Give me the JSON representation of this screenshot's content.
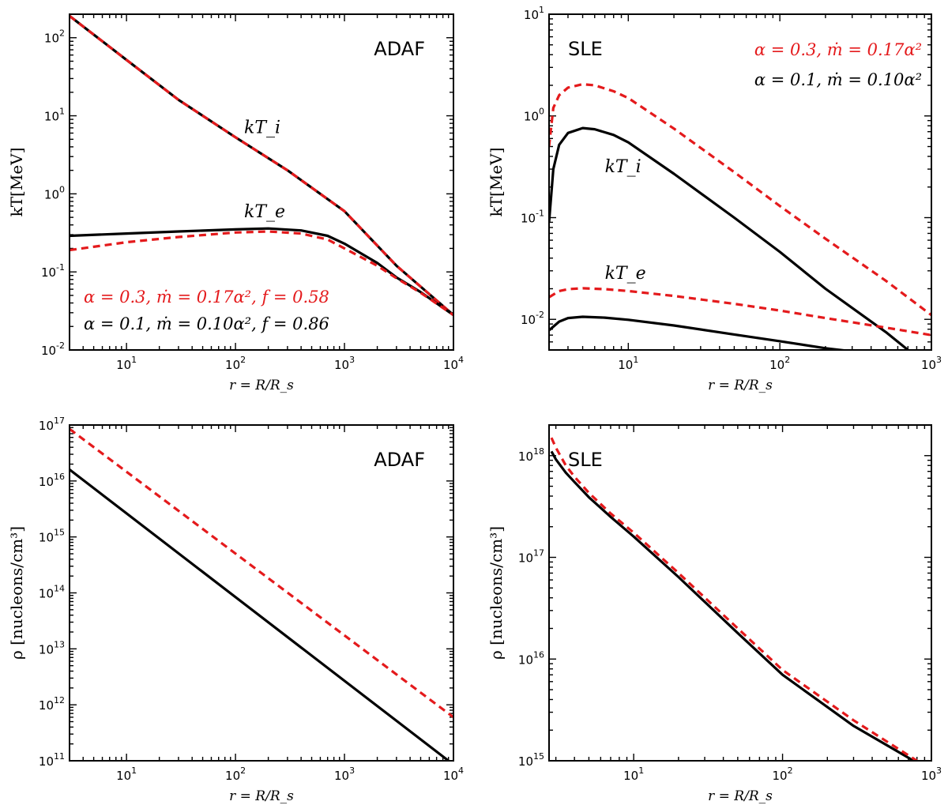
{
  "colors": {
    "red": "#e41a1c",
    "black": "#000000"
  },
  "chart_data": [
    {
      "id": "adaf-temp",
      "type": "line",
      "title": "ADAF",
      "ylabel": "kT[MeV]",
      "xlabel": "r = R/R_s",
      "xscale": "log",
      "yscale": "log",
      "xlim": [
        3,
        10000
      ],
      "ylim": [
        0.01,
        200
      ],
      "xticks": [
        10,
        100,
        1000,
        10000
      ],
      "yticks": [
        0.01,
        0.1,
        1,
        10,
        100
      ],
      "legend": [
        {
          "text": "α = 0.3, ṁ = 0.17α², f = 0.58",
          "color": "#e41a1c"
        },
        {
          "text": "α = 0.1, ṁ = 0.10α², f = 0.86",
          "color": "#000000"
        }
      ],
      "annotations": [
        {
          "text": "kT_i",
          "x": 120,
          "y": 6
        },
        {
          "text": "kT_e",
          "x": 120,
          "y": 0.5
        }
      ],
      "series": [
        {
          "name": "kT_i α=0.1",
          "color": "#000000",
          "style": "solid",
          "x": [
            3,
            10,
            30,
            100,
            300,
            1000,
            3000,
            10000
          ],
          "y": [
            190,
            52,
            16,
            5.3,
            2.0,
            0.6,
            0.12,
            0.028
          ]
        },
        {
          "name": "kT_i α=0.3",
          "color": "#e41a1c",
          "style": "dashed",
          "x": [
            3,
            10,
            30,
            100,
            300,
            1000,
            3000,
            10000
          ],
          "y": [
            190,
            52,
            16,
            5.3,
            2.0,
            0.6,
            0.12,
            0.028
          ]
        },
        {
          "name": "kT_e α=0.1",
          "color": "#000000",
          "style": "solid",
          "x": [
            3,
            10,
            30,
            100,
            200,
            400,
            700,
            1000,
            2000,
            3000,
            5000,
            10000
          ],
          "y": [
            0.29,
            0.31,
            0.33,
            0.35,
            0.36,
            0.34,
            0.29,
            0.23,
            0.13,
            0.085,
            0.055,
            0.028
          ]
        },
        {
          "name": "kT_e α=0.3",
          "color": "#e41a1c",
          "style": "dashed",
          "x": [
            3,
            10,
            30,
            100,
            200,
            400,
            700,
            1000,
            2000,
            3000,
            5000,
            10000
          ],
          "y": [
            0.19,
            0.24,
            0.28,
            0.32,
            0.33,
            0.31,
            0.26,
            0.2,
            0.12,
            0.083,
            0.054,
            0.028
          ]
        }
      ]
    },
    {
      "id": "sle-temp",
      "type": "line",
      "title": "SLE",
      "ylabel": "kT[MeV]",
      "xlabel": "r = R/R_s",
      "xscale": "log",
      "yscale": "log",
      "xlim": [
        3,
        1000
      ],
      "ylim": [
        0.005,
        10
      ],
      "xticks": [
        10,
        100,
        1000
      ],
      "yticks": [
        0.01,
        0.1,
        1,
        10
      ],
      "legend": [
        {
          "text": "α = 0.3, ṁ = 0.17α²",
          "color": "#e41a1c"
        },
        {
          "text": "α = 0.1, ṁ = 0.10α²",
          "color": "#000000"
        }
      ],
      "annotations": [
        {
          "text": "kT_i",
          "x": 7,
          "y": 0.28
        },
        {
          "text": "kT_e",
          "x": 7,
          "y": 0.025
        }
      ],
      "series": [
        {
          "name": "kT_i α=0.1",
          "color": "#000000",
          "style": "solid",
          "x": [
            3,
            3.2,
            3.5,
            4,
            5,
            6,
            8,
            10,
            20,
            50,
            100,
            200,
            500,
            700
          ],
          "y": [
            0.09,
            0.3,
            0.52,
            0.68,
            0.76,
            0.74,
            0.65,
            0.55,
            0.27,
            0.1,
            0.046,
            0.02,
            0.0075,
            0.005
          ]
        },
        {
          "name": "kT_i α=0.3",
          "color": "#e41a1c",
          "style": "dashed",
          "x": [
            3,
            3.2,
            3.5,
            4,
            5,
            6,
            8,
            10,
            20,
            50,
            100,
            200,
            500,
            1000
          ],
          "y": [
            0.5,
            1.2,
            1.6,
            1.9,
            2.05,
            2.0,
            1.75,
            1.5,
            0.75,
            0.28,
            0.13,
            0.062,
            0.024,
            0.011
          ]
        },
        {
          "name": "kT_e α=0.1",
          "color": "#000000",
          "style": "solid",
          "x": [
            3,
            3.5,
            4,
            5,
            7,
            10,
            20,
            50,
            100,
            200,
            280
          ],
          "y": [
            0.0078,
            0.0095,
            0.0103,
            0.0106,
            0.0104,
            0.0099,
            0.0087,
            0.0071,
            0.0061,
            0.0052,
            0.0049
          ]
        },
        {
          "name": "kT_e α=0.3",
          "color": "#e41a1c",
          "style": "dashed",
          "x": [
            3,
            3.5,
            4,
            5,
            7,
            10,
            20,
            50,
            100,
            200,
            500,
            1000
          ],
          "y": [
            0.0165,
            0.019,
            0.0198,
            0.0202,
            0.0198,
            0.019,
            0.017,
            0.0142,
            0.0122,
            0.0103,
            0.0083,
            0.007
          ]
        }
      ]
    },
    {
      "id": "adaf-density",
      "type": "line",
      "title": "ADAF",
      "ylabel": "ρ [nucleons/cm³]",
      "xlabel": "r = R/R_s",
      "xscale": "log",
      "yscale": "log",
      "xlim": [
        3,
        10000
      ],
      "ylim": [
        100000000000.0,
        1e+17
      ],
      "xticks": [
        10,
        100,
        1000,
        10000
      ],
      "yticks": [
        100000000000.0,
        1000000000000.0,
        10000000000000.0,
        100000000000000.0,
        1000000000000000.0,
        1e+16,
        1e+17
      ],
      "series": [
        {
          "name": "ρ α=0.1",
          "color": "#000000",
          "style": "solid",
          "x": [
            3,
            9000
          ],
          "y": [
            1.6e+16,
            100000000000.0
          ]
        },
        {
          "name": "ρ α=0.3",
          "color": "#e41a1c",
          "style": "dashed",
          "x": [
            3,
            10000
          ],
          "y": [
            8.5e+16,
            600000000000.0
          ]
        }
      ]
    },
    {
      "id": "sle-density",
      "type": "line",
      "title": "SLE",
      "ylabel": "ρ [nucleons/cm³]",
      "xlabel": "r = R/R_s",
      "xscale": "log",
      "yscale": "log",
      "xlim": [
        2.7,
        1000
      ],
      "ylim": [
        1000000000000000.0,
        2e+18
      ],
      "xticks": [
        10,
        100,
        1000
      ],
      "yticks": [
        1000000000000000.0,
        1e+16,
        1e+17,
        1e+18
      ],
      "series": [
        {
          "name": "ρ α=0.1",
          "color": "#000000",
          "style": "solid",
          "x": [
            2.8,
            3,
            3.5,
            4,
            5,
            7,
            10,
            20,
            50,
            100,
            300,
            760
          ],
          "y": [
            1.1e+18,
            9.2e+17,
            6.8e+17,
            5.5e+17,
            3.9e+17,
            2.5e+17,
            1.6e+17,
            6.4e+16,
            1.8e+16,
            7000000000000000.0,
            2200000000000000.0,
            1000000000000000.0
          ]
        },
        {
          "name": "ρ α=0.3",
          "color": "#e41a1c",
          "style": "dashed",
          "x": [
            2.8,
            3,
            3.5,
            4,
            5,
            7,
            10,
            20,
            50,
            100,
            300,
            800
          ],
          "y": [
            1.5e+18,
            1.2e+18,
            8e+17,
            6.2e+17,
            4.3e+17,
            2.7e+17,
            1.75e+17,
            7e+16,
            2e+16,
            7800000000000000.0,
            2500000000000000.0,
            1000000000000000.0
          ]
        }
      ]
    }
  ]
}
